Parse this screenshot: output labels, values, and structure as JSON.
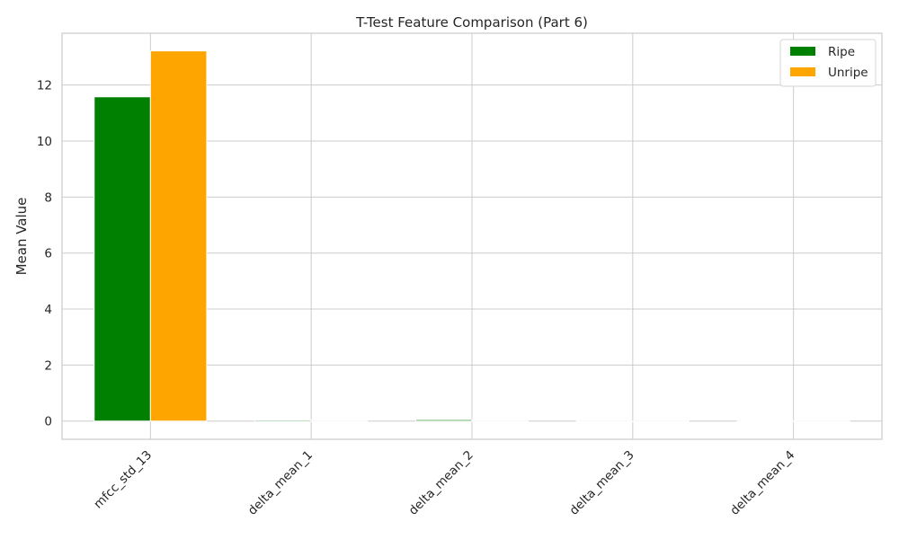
{
  "chart_data": {
    "type": "bar",
    "title": "T-Test Feature Comparison (Part 6)",
    "xlabel": "",
    "ylabel": "Mean Value",
    "categories": [
      "mfcc_std_13",
      "delta_mean_1",
      "delta_mean_2",
      "delta_mean_3",
      "delta_mean_4"
    ],
    "series": [
      {
        "name": "Ripe",
        "color": "#008000",
        "values": [
          11.58,
          0.04,
          0.05,
          -0.01,
          0.005
        ]
      },
      {
        "name": "Unripe",
        "color": "#FFA500",
        "values": [
          13.22,
          -0.02,
          -0.02,
          -0.015,
          -0.01
        ]
      }
    ],
    "ylim": [
      -0.65,
      13.85
    ],
    "yticks": [
      "0",
      "2",
      "4",
      "6",
      "8",
      "10",
      "12"
    ],
    "grid": true,
    "legend_position": "top-right"
  }
}
